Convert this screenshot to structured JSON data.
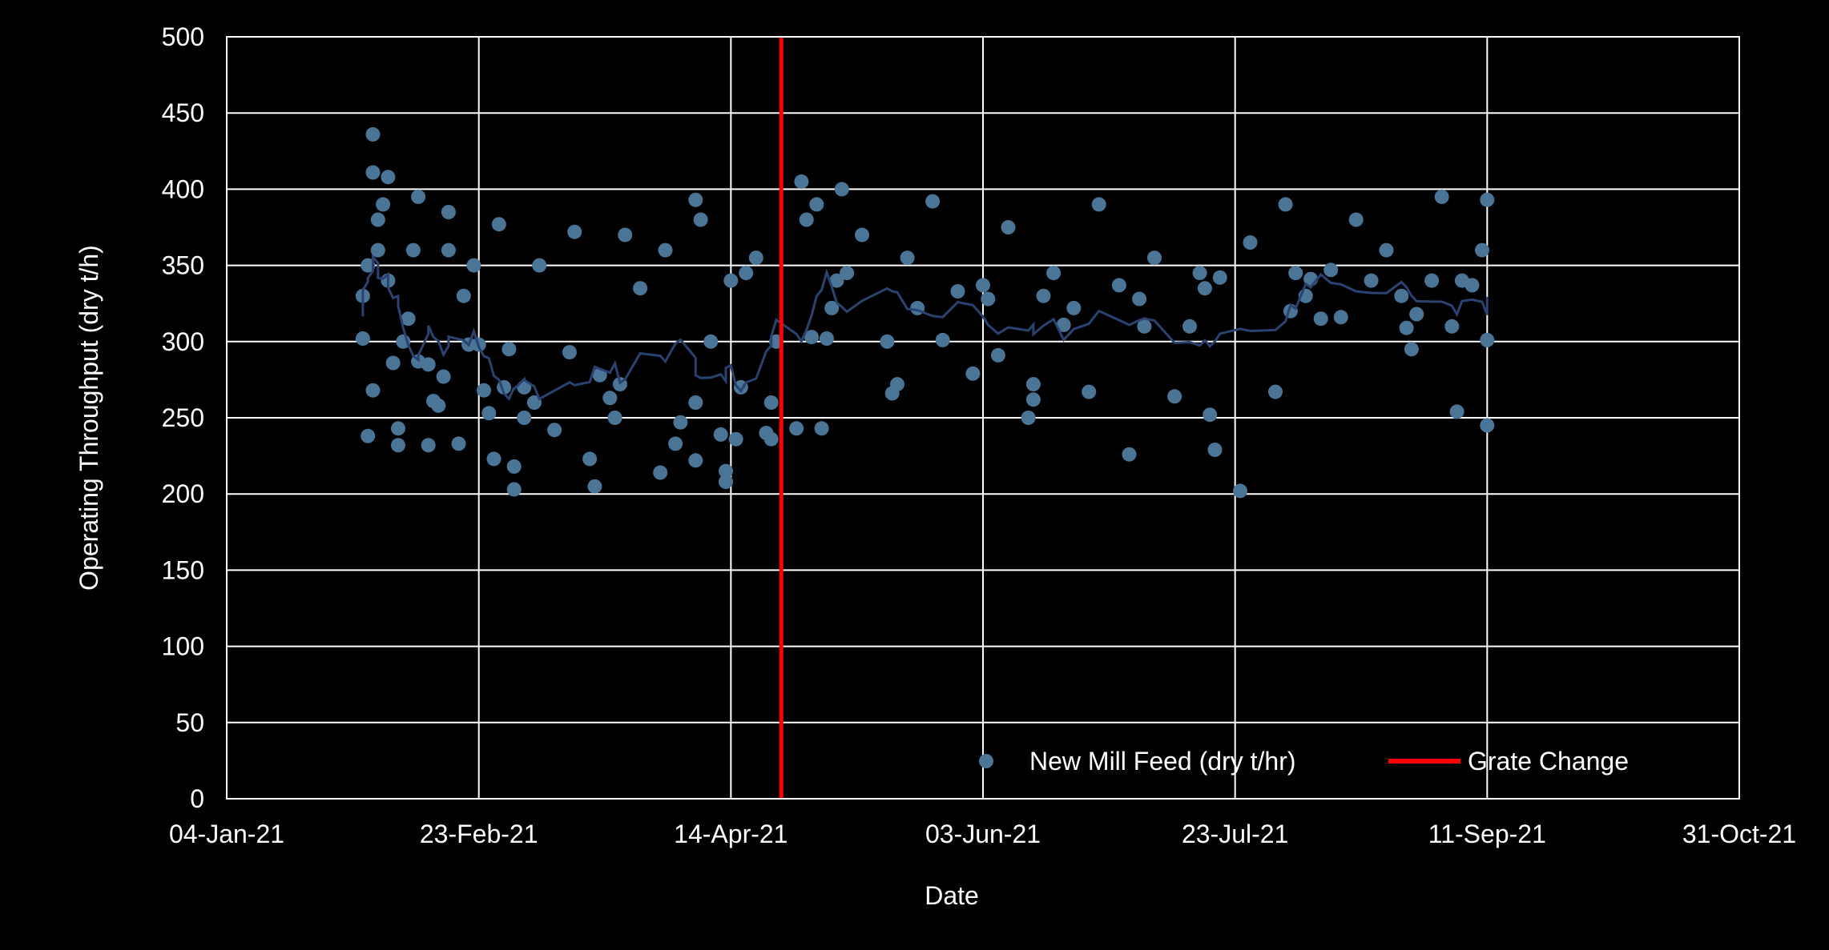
{
  "chart_data": {
    "type": "scatter",
    "title": "",
    "xlabel": "Date",
    "ylabel": "Operating Throughput (dry t/h)",
    "xlim": [
      "2021-01-04",
      "2021-10-31"
    ],
    "ylim": [
      0,
      500
    ],
    "x_tick_labels": [
      "04-Jan-21",
      "23-Feb-21",
      "14-Apr-21",
      "03-Jun-21",
      "23-Jul-21",
      "11-Sep-21",
      "31-Oct-21"
    ],
    "x_tick_dates": [
      "2021-01-04",
      "2021-02-23",
      "2021-04-14",
      "2021-06-03",
      "2021-07-23",
      "2021-09-11",
      "2021-10-31"
    ],
    "y_ticks": [
      0,
      50,
      100,
      150,
      200,
      250,
      300,
      350,
      400,
      450,
      500
    ],
    "grid": true,
    "legend": {
      "placement": "bottom-right",
      "entries": [
        {
          "label": "New Mill Feed (dry t/hr)",
          "marker": "circle",
          "color": "#4a7596"
        },
        {
          "label": "Grate Change",
          "marker": "line",
          "color": "#ff0000"
        }
      ]
    },
    "colors": {
      "scatter": "#4a7596",
      "moving_average": "#2a4270",
      "grate_change": "#ff0000",
      "grid": "#ffffff",
      "background": "#000000"
    },
    "grate_change_date": "2021-04-24",
    "series": [
      {
        "name": "New Mill Feed (dry t/hr)",
        "type": "scatter",
        "points": [
          [
            "2021-01-31",
            302
          ],
          [
            "2021-01-31",
            330
          ],
          [
            "2021-02-01",
            350
          ],
          [
            "2021-02-01",
            238
          ],
          [
            "2021-02-02",
            268
          ],
          [
            "2021-02-02",
            411
          ],
          [
            "2021-02-02",
            436
          ],
          [
            "2021-02-03",
            380
          ],
          [
            "2021-02-03",
            360
          ],
          [
            "2021-02-04",
            390
          ],
          [
            "2021-02-05",
            408
          ],
          [
            "2021-02-05",
            340
          ],
          [
            "2021-02-06",
            286
          ],
          [
            "2021-02-07",
            243
          ],
          [
            "2021-02-07",
            232
          ],
          [
            "2021-02-08",
            300
          ],
          [
            "2021-02-09",
            315
          ],
          [
            "2021-02-10",
            360
          ],
          [
            "2021-02-11",
            395
          ],
          [
            "2021-02-11",
            287
          ],
          [
            "2021-02-13",
            232
          ],
          [
            "2021-02-13",
            285
          ],
          [
            "2021-02-14",
            261
          ],
          [
            "2021-02-15",
            258
          ],
          [
            "2021-02-16",
            277
          ],
          [
            "2021-02-17",
            385
          ],
          [
            "2021-02-17",
            360
          ],
          [
            "2021-02-19",
            233
          ],
          [
            "2021-02-20",
            330
          ],
          [
            "2021-02-21",
            298
          ],
          [
            "2021-02-22",
            350
          ],
          [
            "2021-02-23",
            298
          ],
          [
            "2021-02-24",
            268
          ],
          [
            "2021-02-25",
            253
          ],
          [
            "2021-02-26",
            223
          ],
          [
            "2021-02-27",
            377
          ],
          [
            "2021-02-28",
            270
          ],
          [
            "2021-03-01",
            295
          ],
          [
            "2021-03-02",
            218
          ],
          [
            "2021-03-02",
            203
          ],
          [
            "2021-03-04",
            270
          ],
          [
            "2021-03-04",
            250
          ],
          [
            "2021-03-06",
            260
          ],
          [
            "2021-03-07",
            350
          ],
          [
            "2021-03-10",
            242
          ],
          [
            "2021-03-13",
            293
          ],
          [
            "2021-03-14",
            372
          ],
          [
            "2021-03-17",
            223
          ],
          [
            "2021-03-18",
            205
          ],
          [
            "2021-03-19",
            278
          ],
          [
            "2021-03-21",
            263
          ],
          [
            "2021-03-22",
            250
          ],
          [
            "2021-03-23",
            272
          ],
          [
            "2021-03-24",
            370
          ],
          [
            "2021-03-27",
            335
          ],
          [
            "2021-03-31",
            214
          ],
          [
            "2021-04-01",
            360
          ],
          [
            "2021-04-03",
            233
          ],
          [
            "2021-04-04",
            247
          ],
          [
            "2021-04-07",
            393
          ],
          [
            "2021-04-07",
            260
          ],
          [
            "2021-04-07",
            222
          ],
          [
            "2021-04-08",
            380
          ],
          [
            "2021-04-10",
            300
          ],
          [
            "2021-04-12",
            239
          ],
          [
            "2021-04-13",
            215
          ],
          [
            "2021-04-13",
            208
          ],
          [
            "2021-04-14",
            340
          ],
          [
            "2021-04-15",
            236
          ],
          [
            "2021-04-16",
            270
          ],
          [
            "2021-04-17",
            345
          ],
          [
            "2021-04-19",
            355
          ],
          [
            "2021-04-21",
            240
          ],
          [
            "2021-04-22",
            236
          ],
          [
            "2021-04-22",
            260
          ],
          [
            "2021-04-23",
            300
          ],
          [
            "2021-04-27",
            243
          ],
          [
            "2021-04-28",
            405
          ],
          [
            "2021-04-29",
            380
          ],
          [
            "2021-04-30",
            303
          ],
          [
            "2021-05-01",
            390
          ],
          [
            "2021-05-02",
            243
          ],
          [
            "2021-05-03",
            302
          ],
          [
            "2021-05-04",
            322
          ],
          [
            "2021-05-05",
            340
          ],
          [
            "2021-05-06",
            400
          ],
          [
            "2021-05-07",
            345
          ],
          [
            "2021-05-10",
            370
          ],
          [
            "2021-05-15",
            300
          ],
          [
            "2021-05-16",
            266
          ],
          [
            "2021-05-17",
            272
          ],
          [
            "2021-05-19",
            355
          ],
          [
            "2021-05-21",
            322
          ],
          [
            "2021-05-24",
            392
          ],
          [
            "2021-05-26",
            301
          ],
          [
            "2021-05-29",
            333
          ],
          [
            "2021-06-01",
            279
          ],
          [
            "2021-06-03",
            337
          ],
          [
            "2021-06-04",
            328
          ],
          [
            "2021-06-06",
            291
          ],
          [
            "2021-06-08",
            375
          ],
          [
            "2021-06-12",
            250
          ],
          [
            "2021-06-13",
            272
          ],
          [
            "2021-06-13",
            262
          ],
          [
            "2021-06-15",
            330
          ],
          [
            "2021-06-17",
            345
          ],
          [
            "2021-06-19",
            311
          ],
          [
            "2021-06-21",
            322
          ],
          [
            "2021-06-24",
            267
          ],
          [
            "2021-06-26",
            390
          ],
          [
            "2021-06-30",
            337
          ],
          [
            "2021-07-02",
            226
          ],
          [
            "2021-07-04",
            328
          ],
          [
            "2021-07-05",
            310
          ],
          [
            "2021-07-07",
            355
          ],
          [
            "2021-07-11",
            264
          ],
          [
            "2021-07-14",
            310
          ],
          [
            "2021-07-16",
            345
          ],
          [
            "2021-07-17",
            335
          ],
          [
            "2021-07-18",
            252
          ],
          [
            "2021-07-19",
            229
          ],
          [
            "2021-07-20",
            342
          ],
          [
            "2021-07-24",
            202
          ],
          [
            "2021-07-26",
            365
          ],
          [
            "2021-07-31",
            267
          ],
          [
            "2021-08-02",
            390
          ],
          [
            "2021-08-03",
            320
          ],
          [
            "2021-08-04",
            345
          ],
          [
            "2021-08-06",
            330
          ],
          [
            "2021-08-07",
            341
          ],
          [
            "2021-08-09",
            315
          ],
          [
            "2021-08-11",
            347
          ],
          [
            "2021-08-13",
            316
          ],
          [
            "2021-08-16",
            380
          ],
          [
            "2021-08-19",
            340
          ],
          [
            "2021-08-22",
            360
          ],
          [
            "2021-08-25",
            330
          ],
          [
            "2021-08-26",
            309
          ],
          [
            "2021-08-27",
            295
          ],
          [
            "2021-08-28",
            318
          ],
          [
            "2021-08-31",
            340
          ],
          [
            "2021-09-02",
            395
          ],
          [
            "2021-09-04",
            310
          ],
          [
            "2021-09-05",
            254
          ],
          [
            "2021-09-06",
            340
          ],
          [
            "2021-09-08",
            337
          ],
          [
            "2021-09-10",
            360
          ],
          [
            "2021-09-11",
            301
          ],
          [
            "2021-09-11",
            245
          ],
          [
            "2021-09-11",
            393
          ]
        ]
      }
    ]
  }
}
